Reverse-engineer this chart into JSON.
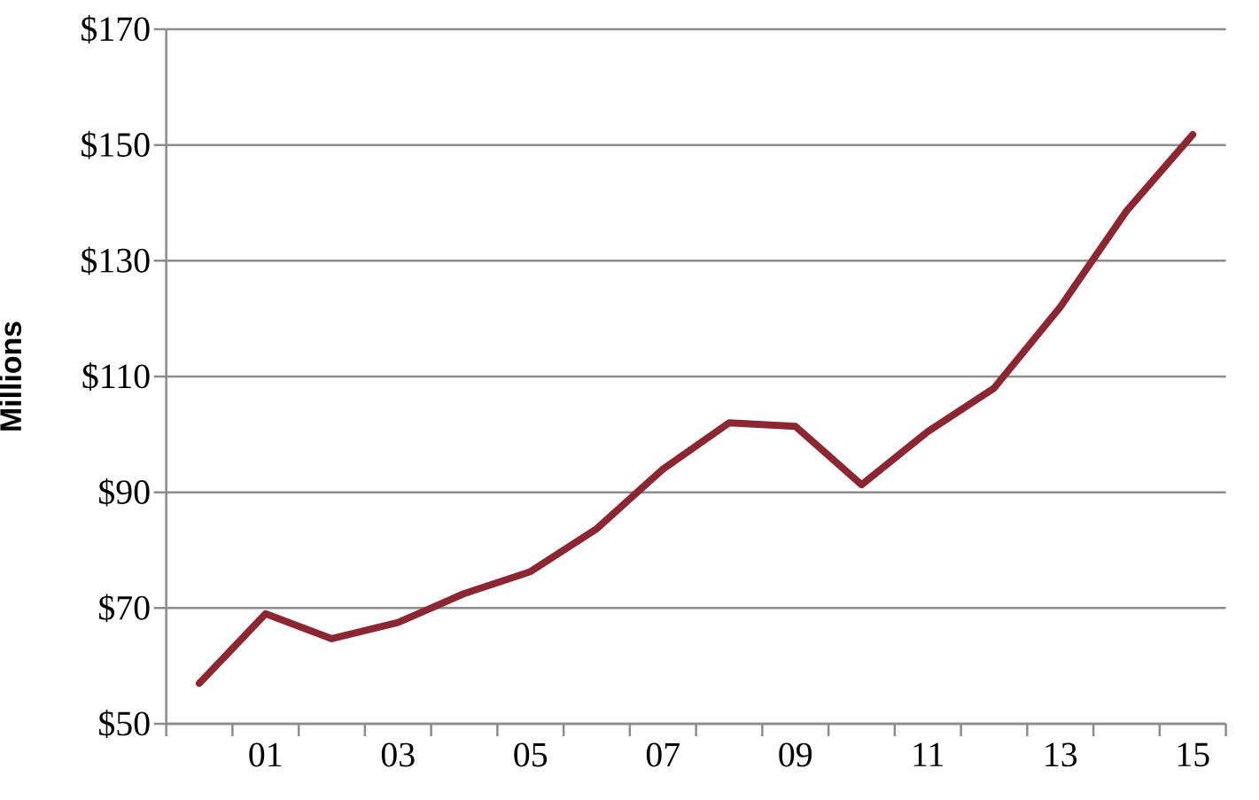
{
  "chart_data": {
    "type": "line",
    "ylabel": "Millions",
    "categories": [
      null,
      "01",
      null,
      "03",
      null,
      "05",
      null,
      "07",
      null,
      "09",
      null,
      "11",
      null,
      "13",
      null,
      "15"
    ],
    "series": [
      {
        "color": "#8b2633",
        "values": [
          57,
          69,
          64.7,
          67.5,
          72.5,
          76.3,
          83.7,
          94,
          102,
          101.4,
          91.3,
          100.5,
          108,
          122,
          138.6,
          151.8
        ]
      }
    ],
    "ylim": [
      50,
      170
    ],
    "yticks": [
      {
        "value": 50,
        "label": "$50"
      },
      {
        "value": 70,
        "label": "$70"
      },
      {
        "value": 90,
        "label": "$90"
      },
      {
        "value": 110,
        "label": "$110"
      },
      {
        "value": 130,
        "label": "$130"
      },
      {
        "value": 150,
        "label": "$150"
      },
      {
        "value": 170,
        "label": "$170"
      }
    ],
    "grid": "y"
  }
}
